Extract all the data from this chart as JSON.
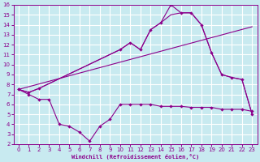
{
  "background_color": "#c8eaf0",
  "grid_color": "#ffffff",
  "line_color": "#8b008b",
  "xlabel": "Windchill (Refroidissement éolien,°C)",
  "xlim": [
    -0.5,
    23.5
  ],
  "ylim": [
    2,
    16
  ],
  "xticks": [
    0,
    1,
    2,
    3,
    4,
    5,
    6,
    7,
    8,
    9,
    10,
    11,
    12,
    13,
    14,
    15,
    16,
    17,
    18,
    19,
    20,
    21,
    22,
    23
  ],
  "yticks": [
    2,
    3,
    4,
    5,
    6,
    7,
    8,
    9,
    10,
    11,
    12,
    13,
    14,
    15,
    16
  ],
  "series": [
    {
      "x": [
        0,
        23
      ],
      "y": [
        7.5,
        13.8
      ],
      "marker": false
    },
    {
      "x": [
        0,
        1,
        2,
        10,
        11,
        12,
        13,
        14,
        15,
        16,
        17,
        18,
        19,
        20,
        21,
        22,
        23
      ],
      "y": [
        7.5,
        7.2,
        7.6,
        11.5,
        12.2,
        11.5,
        13.5,
        14.2,
        16.0,
        15.2,
        15.2,
        14.0,
        11.2,
        9.0,
        8.7,
        8.5,
        5.0
      ],
      "marker": true
    },
    {
      "x": [
        0,
        1,
        2,
        3,
        4,
        5,
        6,
        7,
        8,
        9,
        10,
        11,
        12,
        13,
        14,
        15,
        16,
        17,
        18,
        19,
        20,
        21,
        22,
        23
      ],
      "y": [
        7.5,
        7.0,
        6.5,
        6.5,
        4.0,
        3.8,
        3.2,
        2.3,
        3.8,
        4.5,
        6.0,
        6.0,
        6.0,
        6.0,
        5.8,
        5.8,
        5.8,
        5.7,
        5.7,
        5.7,
        5.5,
        5.5,
        5.5,
        5.3
      ],
      "marker": true
    },
    {
      "x": [
        0,
        1,
        2,
        10,
        11,
        12,
        13,
        14,
        15,
        16,
        17,
        18,
        19,
        20,
        21,
        22,
        23
      ],
      "y": [
        7.5,
        7.2,
        7.6,
        11.5,
        12.2,
        11.5,
        13.5,
        14.2,
        15.0,
        15.2,
        15.2,
        14.0,
        11.2,
        9.0,
        8.7,
        8.5,
        5.0
      ],
      "marker": false
    }
  ]
}
